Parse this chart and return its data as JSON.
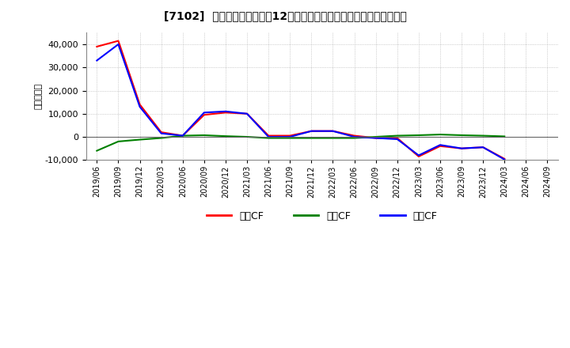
{
  "title": "[7102]  キャッシュフローの12か月移動合計の対前年同期増減額の推移",
  "ylabel": "（百万円）",
  "background_color": "#ffffff",
  "grid_color": "#aaaaaa",
  "ylim": [
    -10000,
    45000
  ],
  "yticks": [
    -10000,
    0,
    10000,
    20000,
    30000,
    40000
  ],
  "x_labels": [
    "2019/06",
    "2019/09",
    "2019/12",
    "2020/03",
    "2020/06",
    "2020/09",
    "2020/12",
    "2021/03",
    "2021/06",
    "2021/09",
    "2021/12",
    "2022/03",
    "2022/06",
    "2022/09",
    "2022/12",
    "2023/03",
    "2023/06",
    "2023/09",
    "2023/12",
    "2024/03",
    "2024/06",
    "2024/09"
  ],
  "series_order": [
    "営業CF",
    "投資CF",
    "フリCF"
  ],
  "series": {
    "営業CF": {
      "color": "#ff0000",
      "values": [
        39000,
        41500,
        14000,
        2000,
        500,
        9500,
        10500,
        10000,
        500,
        500,
        2500,
        2500,
        500,
        -500,
        -500,
        -8500,
        -4000,
        -5000,
        -4500,
        -9500,
        null,
        null
      ]
    },
    "投資CF": {
      "color": "#008000",
      "values": [
        -6000,
        -2000,
        -1200,
        -500,
        500,
        700,
        300,
        0,
        -500,
        -500,
        -500,
        -500,
        -500,
        0,
        500,
        700,
        1000,
        700,
        500,
        200,
        null,
        null
      ]
    },
    "フリCF": {
      "color": "#0000ff",
      "values": [
        33000,
        40000,
        13000,
        1500,
        500,
        10500,
        11000,
        10000,
        0,
        0,
        2500,
        2500,
        0,
        -500,
        -1000,
        -8000,
        -3500,
        -5000,
        -4500,
        -9800,
        null,
        null
      ]
    }
  },
  "legend_labels": [
    "営業CF",
    "投資CF",
    "フリCF"
  ],
  "legend_colors": [
    "#ff0000",
    "#008000",
    "#0000ff"
  ]
}
